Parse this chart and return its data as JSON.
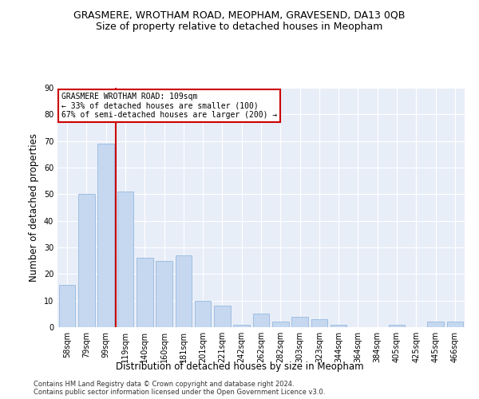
{
  "title": "GRASMERE, WROTHAM ROAD, MEOPHAM, GRAVESEND, DA13 0QB",
  "subtitle": "Size of property relative to detached houses in Meopham",
  "xlabel": "Distribution of detached houses by size in Meopham",
  "ylabel": "Number of detached properties",
  "categories": [
    "58sqm",
    "79sqm",
    "99sqm",
    "119sqm",
    "140sqm",
    "160sqm",
    "181sqm",
    "201sqm",
    "221sqm",
    "242sqm",
    "262sqm",
    "282sqm",
    "303sqm",
    "323sqm",
    "344sqm",
    "364sqm",
    "384sqm",
    "405sqm",
    "425sqm",
    "445sqm",
    "466sqm"
  ],
  "values": [
    16,
    50,
    69,
    51,
    26,
    25,
    27,
    10,
    8,
    1,
    5,
    2,
    4,
    3,
    1,
    0,
    0,
    1,
    0,
    2,
    2
  ],
  "bar_color": "#c5d8f0",
  "bar_edge_color": "#8ab0d8",
  "bar_linewidth": 0.5,
  "vline_x": 2.5,
  "vline_color": "#cc0000",
  "annotation_text": "GRASMERE WROTHAM ROAD: 109sqm\n← 33% of detached houses are smaller (100)\n67% of semi-detached houses are larger (200) →",
  "annotation_box_color": "#ffffff",
  "annotation_box_edge": "#cc0000",
  "ylim": [
    0,
    90
  ],
  "yticks": [
    0,
    10,
    20,
    30,
    40,
    50,
    60,
    70,
    80,
    90
  ],
  "footer_line1": "Contains HM Land Registry data © Crown copyright and database right 2024.",
  "footer_line2": "Contains public sector information licensed under the Open Government Licence v3.0.",
  "plot_bg_color": "#e8eef8",
  "title_fontsize": 9,
  "subtitle_fontsize": 9,
  "tick_fontsize": 7,
  "label_fontsize": 8.5
}
